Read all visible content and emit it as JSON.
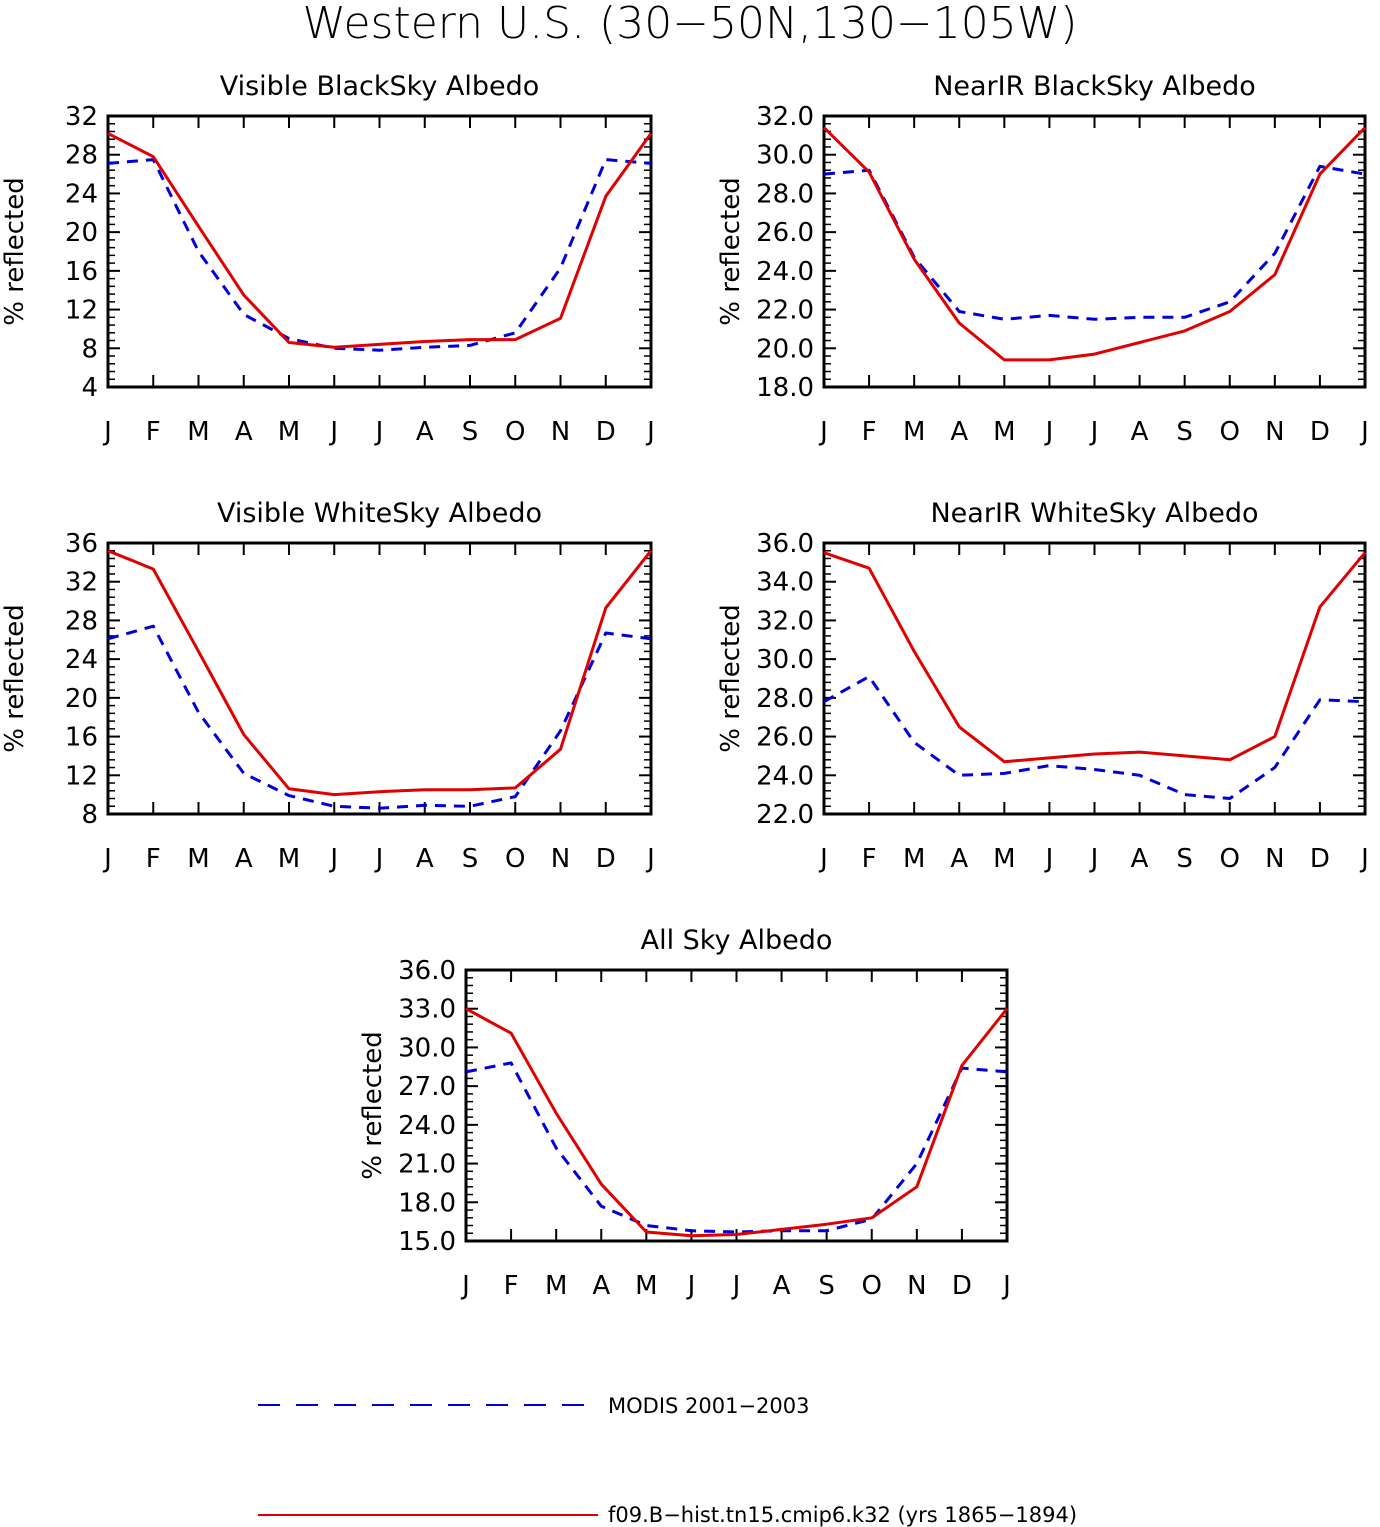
{
  "figure_title": "Western U.S. (30−50N,130−105W)",
  "colors": {
    "model": "#e00000",
    "obs": "#0000dd",
    "axes": "#000000"
  },
  "legend": {
    "obs_label": "MODIS 2001−2003",
    "model_label": "f09.B−hist.tn15.cmip6.k32 (yrs 1865−1894)"
  },
  "chart_data": [
    {
      "type": "line",
      "title": "Visible BlackSky Albedo",
      "ylabel": "% reflected",
      "x": [
        "J",
        "F",
        "M",
        "A",
        "M",
        "J",
        "J",
        "A",
        "S",
        "O",
        "N",
        "D",
        "J"
      ],
      "ylim": [
        4,
        32
      ],
      "yticks": [
        "4",
        "8",
        "12",
        "16",
        "20",
        "24",
        "28",
        "32"
      ],
      "series": [
        {
          "name": "MODIS 2001−2003",
          "style": "dashed",
          "values": [
            27.1,
            27.5,
            18.0,
            11.5,
            9.0,
            8.0,
            7.8,
            8.1,
            8.3,
            9.6,
            16.3,
            27.5,
            27.1
          ]
        },
        {
          "name": "f09.B−hist.tn15.cmip6.k32 (yrs 1865−1894)",
          "style": "solid",
          "values": [
            30.2,
            27.8,
            20.6,
            13.5,
            8.6,
            8.1,
            8.4,
            8.7,
            8.9,
            8.9,
            11.1,
            23.7,
            30.2
          ]
        }
      ]
    },
    {
      "type": "line",
      "title": "NearIR BlackSky Albedo",
      "ylabel": "% reflected",
      "x": [
        "J",
        "F",
        "M",
        "A",
        "M",
        "J",
        "J",
        "A",
        "S",
        "O",
        "N",
        "D",
        "J"
      ],
      "ylim": [
        18,
        32
      ],
      "yticks": [
        "18.0",
        "20.0",
        "22.0",
        "24.0",
        "26.0",
        "28.0",
        "30.0",
        "32.0"
      ],
      "series": [
        {
          "name": "MODIS 2001−2003",
          "style": "dashed",
          "values": [
            29.0,
            29.2,
            24.7,
            21.9,
            21.5,
            21.7,
            21.5,
            21.6,
            21.6,
            22.4,
            24.9,
            29.4,
            29.0
          ]
        },
        {
          "name": "f09.B−hist.tn15.cmip6.k32 (yrs 1865−1894)",
          "style": "solid",
          "values": [
            31.4,
            29.1,
            24.6,
            21.3,
            19.4,
            19.4,
            19.7,
            20.3,
            20.9,
            21.9,
            23.8,
            29.0,
            31.4
          ]
        }
      ]
    },
    {
      "type": "line",
      "title": "Visible WhiteSky Albedo",
      "ylabel": "% reflected",
      "x": [
        "J",
        "F",
        "M",
        "A",
        "M",
        "J",
        "J",
        "A",
        "S",
        "O",
        "N",
        "D",
        "J"
      ],
      "ylim": [
        8,
        36
      ],
      "yticks": [
        "8",
        "12",
        "16",
        "20",
        "24",
        "28",
        "32",
        "36"
      ],
      "series": [
        {
          "name": "MODIS 2001−2003",
          "style": "dashed",
          "values": [
            26.1,
            27.4,
            18.5,
            12.2,
            9.9,
            8.8,
            8.6,
            8.9,
            8.8,
            9.8,
            16.6,
            26.7,
            26.1
          ]
        },
        {
          "name": "f09.B−hist.tn15.cmip6.k32 (yrs 1865−1894)",
          "style": "solid",
          "values": [
            35.2,
            33.3,
            24.8,
            16.2,
            10.6,
            10.0,
            10.3,
            10.5,
            10.5,
            10.7,
            14.7,
            29.3,
            35.2
          ]
        }
      ]
    },
    {
      "type": "line",
      "title": "NearIR WhiteSky Albedo",
      "ylabel": "% reflected",
      "x": [
        "J",
        "F",
        "M",
        "A",
        "M",
        "J",
        "J",
        "A",
        "S",
        "O",
        "N",
        "D",
        "J"
      ],
      "ylim": [
        22,
        36
      ],
      "yticks": [
        "22.0",
        "24.0",
        "26.0",
        "28.0",
        "30.0",
        "32.0",
        "34.0",
        "36.0"
      ],
      "series": [
        {
          "name": "MODIS 2001−2003",
          "style": "dashed",
          "values": [
            27.8,
            29.1,
            25.7,
            24.0,
            24.1,
            24.5,
            24.3,
            24.0,
            23.0,
            22.8,
            24.4,
            27.9,
            27.8
          ]
        },
        {
          "name": "f09.B−hist.tn15.cmip6.k32 (yrs 1865−1894)",
          "style": "solid",
          "values": [
            35.5,
            34.7,
            30.4,
            26.5,
            24.7,
            24.9,
            25.1,
            25.2,
            25.0,
            24.8,
            26.0,
            32.7,
            35.5
          ]
        }
      ]
    },
    {
      "type": "line",
      "title": "All Sky Albedo",
      "ylabel": "% reflected",
      "x": [
        "J",
        "F",
        "M",
        "A",
        "M",
        "J",
        "J",
        "A",
        "S",
        "O",
        "N",
        "D",
        "J"
      ],
      "ylim": [
        15,
        36
      ],
      "yticks": [
        "15.0",
        "18.0",
        "21.0",
        "24.0",
        "27.0",
        "30.0",
        "33.0",
        "36.0"
      ],
      "series": [
        {
          "name": "MODIS 2001−2003",
          "style": "dashed",
          "values": [
            28.1,
            28.8,
            22.2,
            17.7,
            16.2,
            15.8,
            15.7,
            15.8,
            15.8,
            16.7,
            21.0,
            28.4,
            28.1
          ]
        },
        {
          "name": "f09.B−hist.tn15.cmip6.k32 (yrs 1865−1894)",
          "style": "solid",
          "values": [
            33.0,
            31.1,
            24.9,
            19.4,
            15.7,
            15.4,
            15.5,
            15.9,
            16.3,
            16.8,
            19.2,
            28.6,
            33.0
          ]
        }
      ]
    }
  ]
}
